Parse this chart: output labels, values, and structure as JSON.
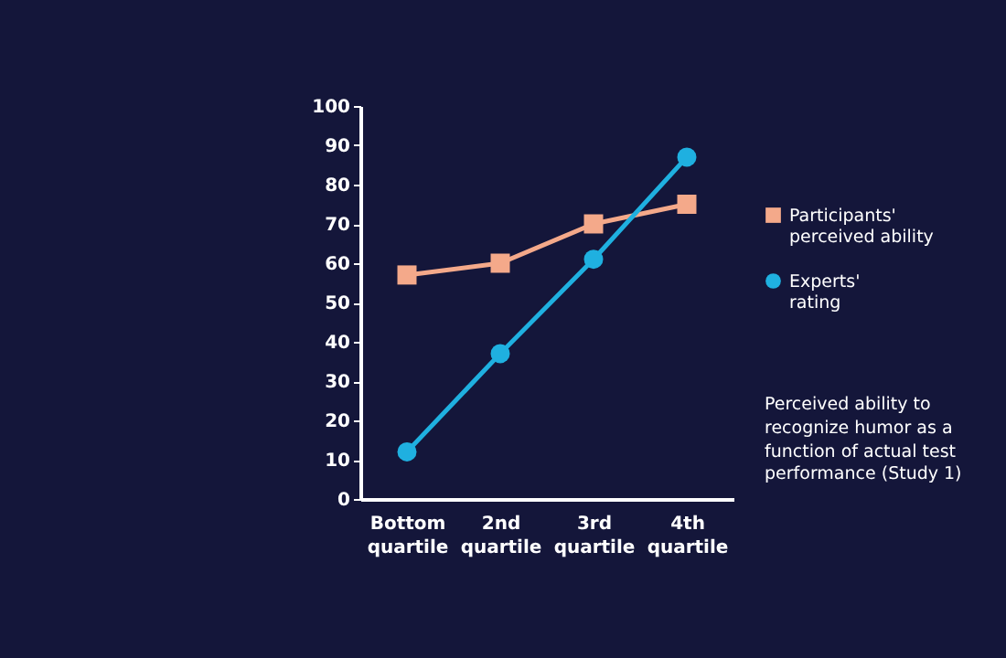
{
  "chart_data": {
    "type": "line",
    "categories": [
      "Bottom quartile",
      "2nd quartile",
      "3rd quartile",
      "4th quartile"
    ],
    "series": [
      {
        "name": "Participants' perceived ability",
        "color": "#f4a98a",
        "marker": "square",
        "values": [
          57,
          60,
          70,
          75
        ]
      },
      {
        "name": "Experts' rating",
        "color": "#1fb0e0",
        "marker": "circle",
        "values": [
          12,
          37,
          61,
          87
        ]
      }
    ],
    "ylim": [
      0,
      100
    ],
    "yticks": [
      0,
      10,
      20,
      30,
      40,
      50,
      60,
      70,
      80,
      90,
      100
    ],
    "grid": false,
    "legend": "right",
    "annotations": [
      "Perceived ability to recognize humor as a function of actual test performance (Study 1)"
    ]
  }
}
